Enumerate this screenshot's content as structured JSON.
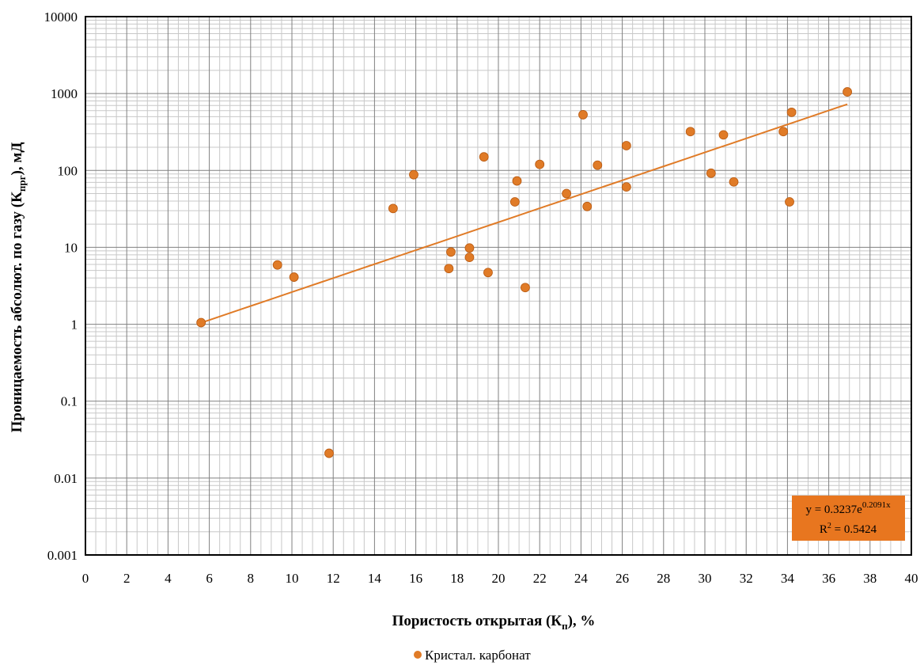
{
  "chart_data": {
    "type": "scatter",
    "title": "",
    "xlabel": "Пористость открытая (К",
    "xlabel_sub": "п",
    "xlabel_suffix": "), %",
    "ylabel": "Проницаемость абсолют. по газу  (К",
    "ylabel_sub": "прг",
    "ylabel_suffix": "), мД",
    "xlim": [
      0,
      40
    ],
    "ylim": [
      0.001,
      10000
    ],
    "y_scale": "log",
    "x_ticks": [
      "0",
      "2",
      "4",
      "6",
      "8",
      "10",
      "12",
      "14",
      "16",
      "18",
      "20",
      "22",
      "24",
      "26",
      "28",
      "30",
      "32",
      "34",
      "36",
      "38",
      "40"
    ],
    "y_ticks": [
      "0.001",
      "0.01",
      "0.1",
      "1",
      "10",
      "100",
      "1000",
      "10000"
    ],
    "grid": true,
    "legend_position": "bottom-center",
    "series": [
      {
        "name": "Кристал. карбонат",
        "color": "#e07b27",
        "points": [
          {
            "x": 5.6,
            "y": 1.05
          },
          {
            "x": 9.3,
            "y": 5.9
          },
          {
            "x": 10.1,
            "y": 4.1
          },
          {
            "x": 11.8,
            "y": 0.021
          },
          {
            "x": 14.9,
            "y": 32
          },
          {
            "x": 15.9,
            "y": 88
          },
          {
            "x": 17.6,
            "y": 5.3
          },
          {
            "x": 17.7,
            "y": 8.7
          },
          {
            "x": 18.6,
            "y": 9.8
          },
          {
            "x": 18.6,
            "y": 7.4
          },
          {
            "x": 19.3,
            "y": 150
          },
          {
            "x": 19.5,
            "y": 4.7
          },
          {
            "x": 20.8,
            "y": 39
          },
          {
            "x": 20.9,
            "y": 73
          },
          {
            "x": 21.3,
            "y": 3.0
          },
          {
            "x": 22.0,
            "y": 120
          },
          {
            "x": 23.3,
            "y": 50
          },
          {
            "x": 24.1,
            "y": 530
          },
          {
            "x": 24.3,
            "y": 34
          },
          {
            "x": 24.8,
            "y": 117
          },
          {
            "x": 26.2,
            "y": 210
          },
          {
            "x": 26.2,
            "y": 61
          },
          {
            "x": 29.3,
            "y": 320
          },
          {
            "x": 30.3,
            "y": 92
          },
          {
            "x": 30.9,
            "y": 290
          },
          {
            "x": 31.4,
            "y": 71
          },
          {
            "x": 33.8,
            "y": 320
          },
          {
            "x": 34.1,
            "y": 39
          },
          {
            "x": 34.2,
            "y": 570
          },
          {
            "x": 36.9,
            "y": 1050
          }
        ]
      }
    ],
    "trendline": {
      "type": "exponential",
      "a": 0.3237,
      "b": 0.2091,
      "x_range": [
        5.6,
        36.9
      ],
      "color": "#e07b27",
      "equation_main": "y = 0.3237e",
      "equation_exp": "0.2091x",
      "r2_main": "R",
      "r2_sup": "2",
      "r2_value": " = 0.5424",
      "label_bg": "#e8761f"
    }
  }
}
